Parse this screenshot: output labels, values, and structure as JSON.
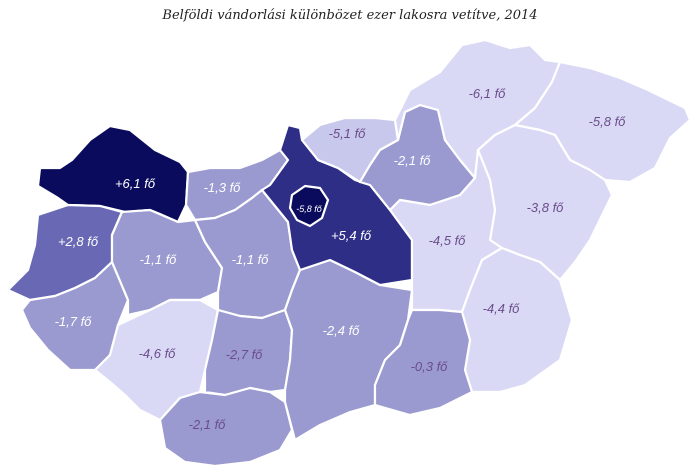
{
  "title": "Belföldi vándorlási különbözet ezer lakosra vetítve, 2014",
  "colors": {
    "darkest": "#0b0b5e",
    "dark": "#2e2e87",
    "mid_dark": "#6868b4",
    "mid": "#9a9ad0",
    "light": "#c8c8ec",
    "lightest": "#d9d9f6",
    "label_on_light": "#6b4d8a",
    "label_on_dark": "#ffffff"
  },
  "counties": [
    {
      "id": "gyor",
      "label": "+6,1 fő"
    },
    {
      "id": "vas",
      "label": "+2,8 fő"
    },
    {
      "id": "zala",
      "label": "-1,7 fő"
    },
    {
      "id": "veszprem",
      "label": "-1,1 fő"
    },
    {
      "id": "komarom",
      "label": "-1,3 fő"
    },
    {
      "id": "fejer",
      "label": "-1,1 fő"
    },
    {
      "id": "somogy",
      "label": "-4,6 fő"
    },
    {
      "id": "tolna",
      "label": "-2,7 fő"
    },
    {
      "id": "baranya",
      "label": "-2,1 fő"
    },
    {
      "id": "bacs",
      "label": "-2,4 fő"
    },
    {
      "id": "pest",
      "label": "+5,4 fő"
    },
    {
      "id": "budapest",
      "label": "-5,8 fő"
    },
    {
      "id": "nograd",
      "label": "-5,1 fő"
    },
    {
      "id": "heves",
      "label": "-2,1 fő"
    },
    {
      "id": "borsod",
      "label": "-6,1 fő"
    },
    {
      "id": "szabolcs",
      "label": "-5,8 fő"
    },
    {
      "id": "hajdu",
      "label": "-3,8 fő"
    },
    {
      "id": "jasz",
      "label": "-4,5 fő"
    },
    {
      "id": "bekes",
      "label": "-4,4 fő"
    },
    {
      "id": "csongrad",
      "label": "-0,3 fő"
    }
  ]
}
